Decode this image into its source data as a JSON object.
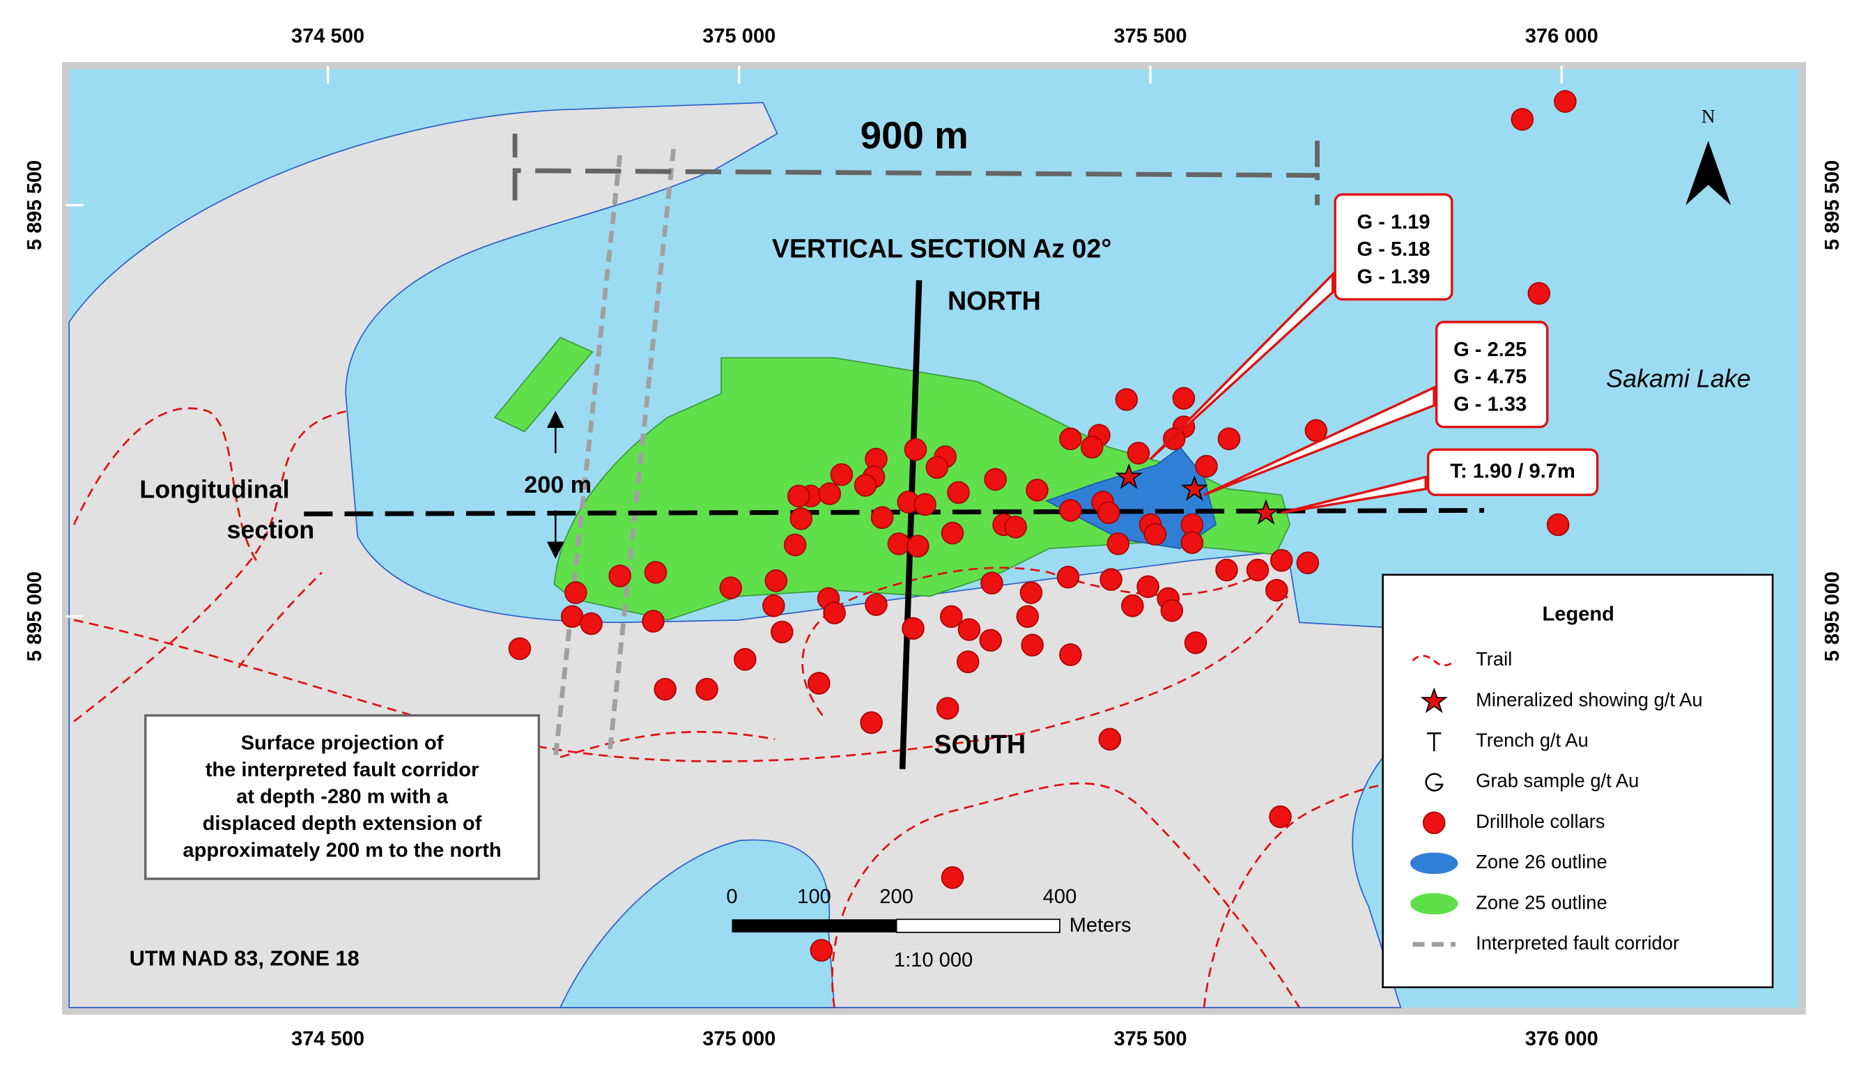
{
  "map": {
    "x_labels": [
      "374 500",
      "375 000",
      "375 500",
      "376 000"
    ],
    "y_labels": [
      "5 895 500",
      "5 895 000"
    ],
    "north": "N",
    "section_title": "VERTICAL SECTION Az 02°",
    "section_north": "NORTH",
    "section_south": "SOUTH",
    "width_label": "900 m",
    "offset_label": "200 m",
    "longitudinal": [
      "Longitudinal",
      "section"
    ],
    "lake": "Sakami Lake",
    "callouts": [
      [
        "G - 1.19",
        "G - 5.18",
        "G - 1.39"
      ],
      [
        "G - 2.25",
        "G - 4.75",
        "G - 1.33"
      ],
      [
        "T: 1.90 / 9.7m"
      ]
    ],
    "fault_note": [
      "Surface projection of",
      "the interpreted fault corridor",
      "at depth -280 m with a",
      "displaced depth extension of",
      "approximately 200 m to the north"
    ],
    "projection": "UTM NAD 83, ZONE 18",
    "scale": {
      "ticks": [
        0,
        100,
        200,
        400
      ],
      "unit": "Meters",
      "ratio": "1:10 000"
    }
  },
  "legend": {
    "title": "Legend",
    "items": [
      "Trail",
      "Mineralized showing g/t Au",
      "Trench g/t Au",
      "Grab sample g/t Au",
      "Drillhole collars",
      "Zone 26 outline",
      "Zone 25 outline",
      "Interpreted fault corridor"
    ]
  }
}
